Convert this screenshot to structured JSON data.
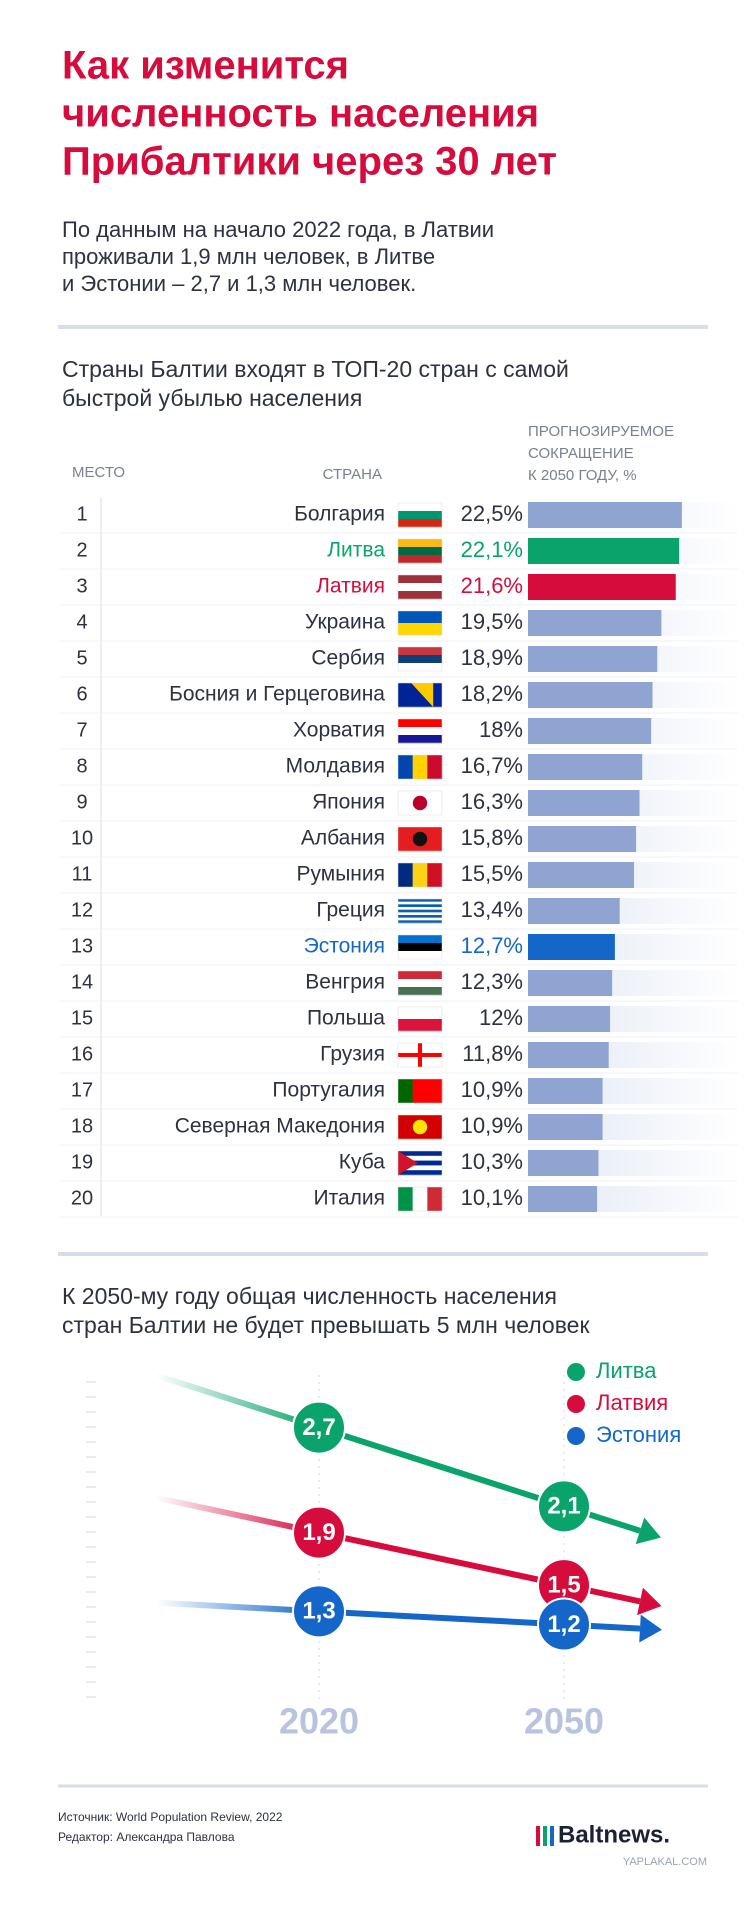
{
  "title": [
    "Как изменится",
    "численность населения",
    "Прибалтики через 30 лет"
  ],
  "subtitle": [
    "По данным на начало 2022 года, в Латвии",
    "проживали 1,9 млн человек, в Литве",
    "и Эстонии – 2,7 и 1,3 млн человек."
  ],
  "chart_data": [
    {
      "type": "bar",
      "orientation": "horizontal",
      "title": [
        "Страны Балтии входят в ТОП-20 стран с самой",
        "быстрой убылью населения"
      ],
      "rank_header": "МЕСТО",
      "category_header": "СТРАНА",
      "value_header": [
        "ПРОГНОЗИРУЕМОЕ",
        "СОКРАЩЕНИЕ",
        "К 2050 ГОДУ, %"
      ],
      "ranks": [
        1,
        2,
        3,
        4,
        5,
        6,
        7,
        8,
        9,
        10,
        11,
        12,
        13,
        14,
        15,
        16,
        17,
        18,
        19,
        20
      ],
      "categories": [
        "Болгария",
        "Литва",
        "Латвия",
        "Украина",
        "Сербия",
        "Босния и Герцеговина",
        "Хорватия",
        "Молдавия",
        "Япония",
        "Албания",
        "Румыния",
        "Греция",
        "Эстония",
        "Венгрия",
        "Польша",
        "Грузия",
        "Португалия",
        "Северная Македония",
        "Куба",
        "Италия"
      ],
      "values": [
        22.5,
        22.1,
        21.6,
        19.5,
        18.9,
        18.2,
        18,
        16.7,
        16.3,
        15.8,
        15.5,
        13.4,
        12.7,
        12.3,
        12,
        11.8,
        10.9,
        10.9,
        10.3,
        10.1
      ],
      "value_labels": [
        "22,5%",
        "22,1%",
        "21,6%",
        "19,5%",
        "18,9%",
        "18,2%",
        "18%",
        "16,7%",
        "16,3%",
        "15,8%",
        "15,5%",
        "13,4%",
        "12,7%",
        "12,3%",
        "12%",
        "11,8%",
        "10,9%",
        "10,9%",
        "10,3%",
        "10,1%"
      ],
      "color": "#8fa4d0",
      "colors": [
        "#8fa4d0",
        "#0aa36b",
        "#d60c3c",
        "#8fa4d0",
        "#8fa4d0",
        "#8fa4d0",
        "#8fa4d0",
        "#8fa4d0",
        "#8fa4d0",
        "#8fa4d0",
        "#8fa4d0",
        "#8fa4d0",
        "#1467c8",
        "#8fa4d0",
        "#8fa4d0",
        "#8fa4d0",
        "#8fa4d0",
        "#8fa4d0",
        "#8fa4d0",
        "#8fa4d0"
      ],
      "xlim": [
        0,
        30.7
      ]
    },
    {
      "type": "line",
      "title": [
        "К 2050-му году общая численность населения",
        "стран Балтии не будет превышать 5 млн человек"
      ],
      "categories": [
        "2020",
        "2050"
      ],
      "series": [
        {
          "name": "Литва",
          "color": "#0aa36b",
          "values": [
            2.7,
            2.1
          ],
          "value_labels": [
            "2,7",
            "2,1"
          ]
        },
        {
          "name": "Латвия",
          "color": "#d60c3c",
          "values": [
            1.9,
            1.5
          ],
          "value_labels": [
            "1,9",
            "1,5"
          ]
        },
        {
          "name": "Эстония",
          "color": "#1467c8",
          "values": [
            1.3,
            1.2
          ],
          "value_labels": [
            "1,3",
            "1,2"
          ]
        }
      ],
      "ylim": [
        0,
        3.2
      ],
      "legend": "upper right"
    }
  ],
  "footer": {
    "source": "Источник: World Population Review, 2022",
    "editor": "Редактор: Александра Павлова",
    "logo": "Baltnews.",
    "watermark": "YAPLAKAL.COM"
  }
}
